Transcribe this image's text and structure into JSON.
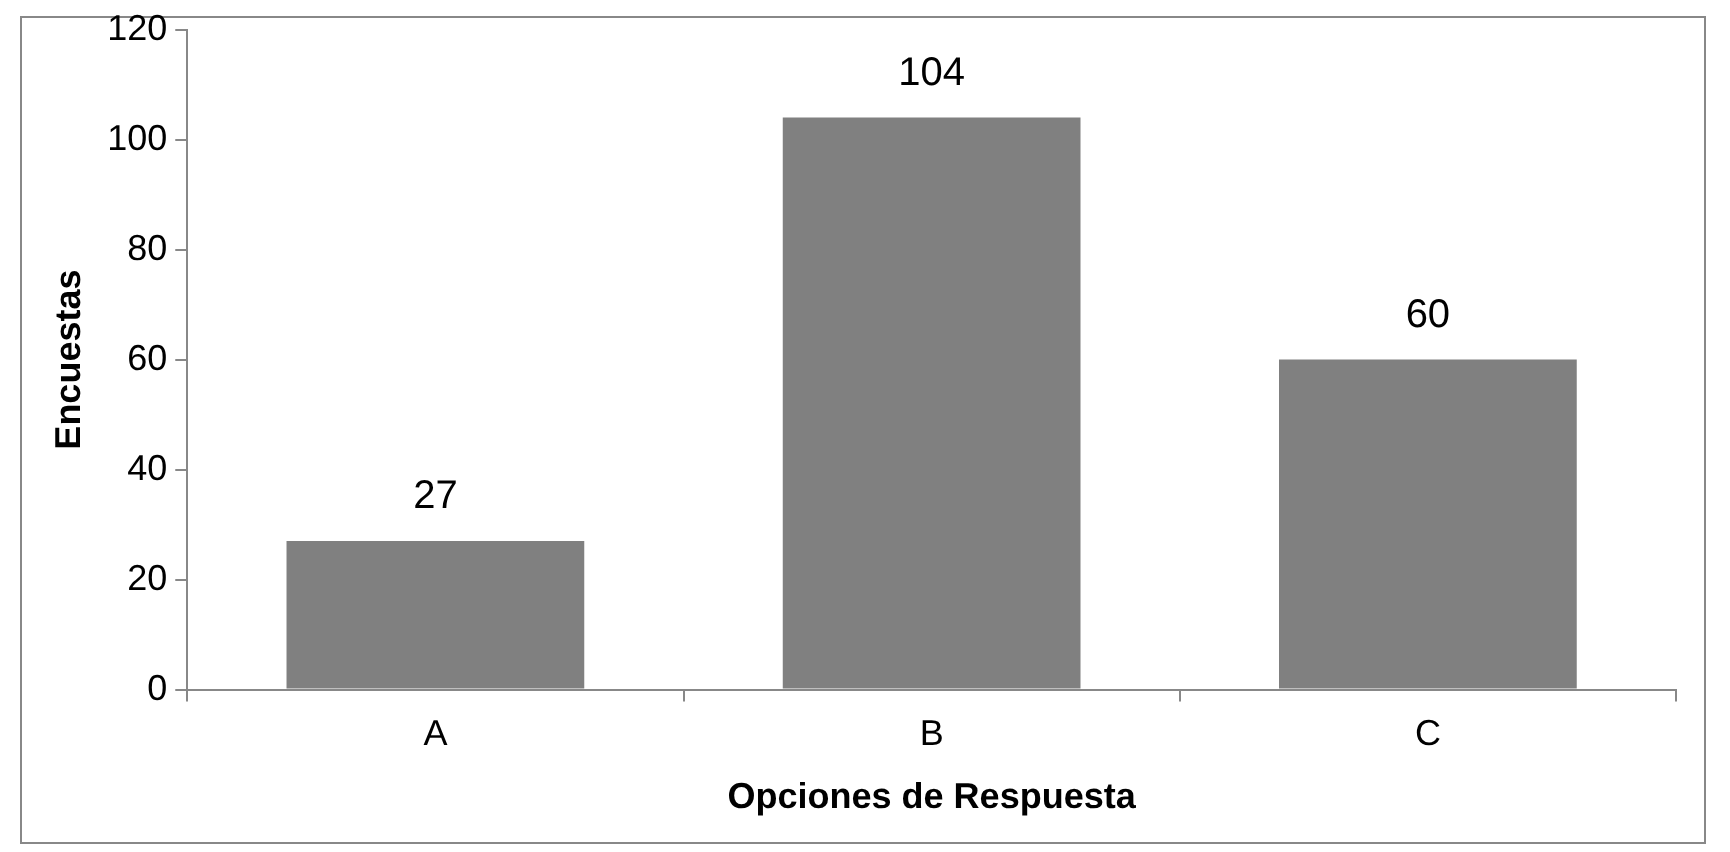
{
  "chart_data": {
    "type": "bar",
    "xlabel": "Opciones de Respuesta",
    "ylabel": "Encuestas",
    "categories": [
      "A",
      "B",
      "C"
    ],
    "values": [
      27,
      104,
      60
    ],
    "color": "#808080",
    "ylim": [
      0,
      120
    ],
    "yticks": [
      0,
      20,
      40,
      60,
      80,
      100,
      120
    ],
    "grid": false,
    "legend": false,
    "data_labels": true
  }
}
